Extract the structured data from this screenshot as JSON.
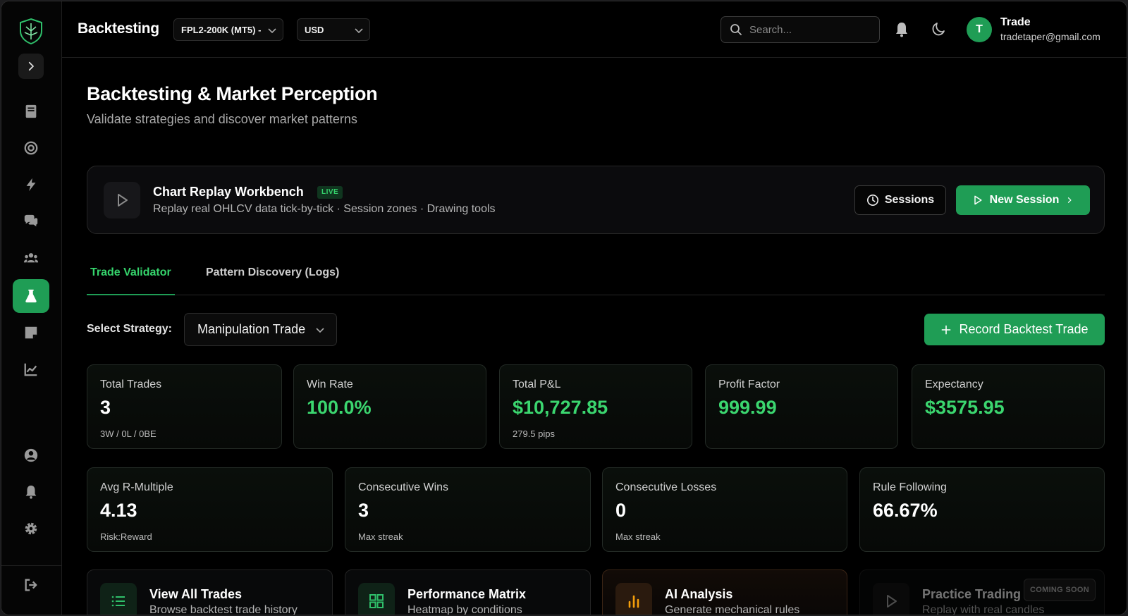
{
  "header": {
    "title": "Backtesting",
    "account_select": "FPL2-200K (MT5) -",
    "currency_select": "USD",
    "search_placeholder": "Search...",
    "user_initial": "T",
    "user_name": "Trade",
    "user_email": "tradetaper@gmail.com"
  },
  "sidebar": {
    "items": [
      {
        "icon": "book-icon"
      },
      {
        "icon": "target-icon"
      },
      {
        "icon": "lightning-icon"
      },
      {
        "icon": "chat-icon"
      },
      {
        "icon": "users-icon"
      },
      {
        "icon": "flask-icon",
        "active": true
      },
      {
        "icon": "note-icon"
      },
      {
        "icon": "chart-line-icon"
      },
      {
        "icon": "user-circle-icon"
      },
      {
        "icon": "bell-icon"
      },
      {
        "icon": "gear-icon"
      },
      {
        "icon": "logout-icon"
      }
    ]
  },
  "page": {
    "title": "Backtesting & Market Perception",
    "subtitle": "Validate strategies and discover market patterns"
  },
  "workbench": {
    "title": "Chart Replay Workbench",
    "badge": "LIVE",
    "description": "Replay real OHLCV data tick-by-tick · Session zones · Drawing tools",
    "sessions_label": "Sessions",
    "new_session_label": "New Session"
  },
  "tabs": [
    {
      "label": "Trade Validator",
      "active": true
    },
    {
      "label": "Pattern Discovery (Logs)",
      "active": false
    }
  ],
  "strategy": {
    "label": "Select Strategy:",
    "selected": "Manipulation Trade"
  },
  "record_button": "Record Backtest Trade",
  "stats_row1": [
    {
      "label": "Total Trades",
      "value": "3",
      "sub": "3W / 0L / 0BE",
      "green": false
    },
    {
      "label": "Win Rate",
      "value": "100.0%",
      "sub": "",
      "green": true
    },
    {
      "label": "Total P&L",
      "value": "$10,727.85",
      "sub": "279.5 pips",
      "green": true
    },
    {
      "label": "Profit Factor",
      "value": "999.99",
      "sub": "",
      "green": true
    },
    {
      "label": "Expectancy",
      "value": "$3575.95",
      "sub": "",
      "green": true
    }
  ],
  "stats_row2": [
    {
      "label": "Avg R-Multiple",
      "value": "4.13",
      "sub": "Risk:Reward"
    },
    {
      "label": "Consecutive Wins",
      "value": "3",
      "sub": "Max streak"
    },
    {
      "label": "Consecutive Losses",
      "value": "0",
      "sub": "Max streak"
    },
    {
      "label": "Rule Following",
      "value": "66.67%",
      "sub": ""
    }
  ],
  "actions": [
    {
      "title": "View All Trades",
      "desc": "Browse backtest trade history"
    },
    {
      "title": "Performance Matrix",
      "desc": "Heatmap by conditions"
    },
    {
      "title": "AI Analysis",
      "desc": "Generate mechanical rules"
    },
    {
      "title": "Practice Trading",
      "desc": "Replay with real candles",
      "badge": "COMING SOON"
    }
  ],
  "colors": {
    "accent": "#1f9d55",
    "accent_text": "#35d46c",
    "ai_accent": "#f59e0b"
  }
}
